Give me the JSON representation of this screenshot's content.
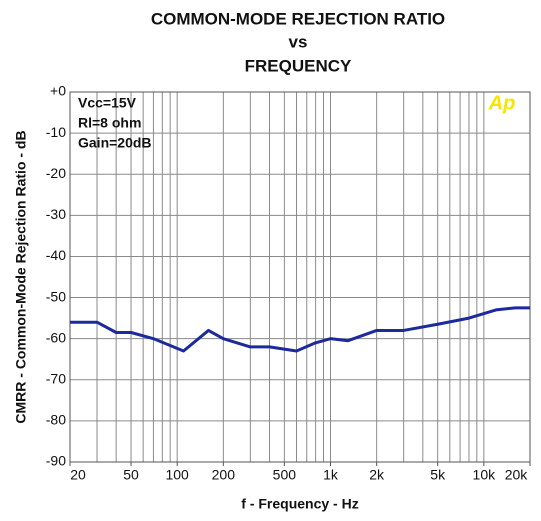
{
  "chart_data": {
    "type": "line",
    "title_lines": [
      "COMMON-MODE REJECTION RATIO",
      "vs",
      "FREQUENCY"
    ],
    "x_label": "f - Frequency - Hz",
    "y_label": "CMRR - Common-Mode Rejection Ratio - dB",
    "annotations": [
      "Vcc=15V",
      "Rl=8 ohm",
      "Gain=20dB"
    ],
    "logo": "Ap",
    "x_scale": "log",
    "xlim": [
      20,
      20000
    ],
    "xticks": [
      20,
      50,
      100,
      200,
      500,
      {
        "value": 1000,
        "label": "1k"
      },
      {
        "value": 2000,
        "label": "2k"
      },
      {
        "value": 5000,
        "label": "5k"
      },
      {
        "value": 10000,
        "label": "10k"
      },
      {
        "value": 20000,
        "label": "20k"
      }
    ],
    "xgrid": [
      20,
      30,
      40,
      50,
      60,
      70,
      80,
      90,
      100,
      200,
      300,
      400,
      500,
      600,
      700,
      800,
      900,
      1000,
      2000,
      3000,
      4000,
      5000,
      6000,
      7000,
      8000,
      9000,
      10000,
      20000
    ],
    "ylim": [
      -90,
      0
    ],
    "yticks": [
      {
        "value": 0,
        "label": "+0"
      },
      -10,
      -20,
      -30,
      -40,
      -50,
      -60,
      -70,
      -80,
      -90
    ],
    "grid": true,
    "series": [
      {
        "name": "CMRR",
        "color": "#1c2a9c",
        "x": [
          20,
          30,
          40,
          50,
          70,
          110,
          160,
          200,
          300,
          400,
          600,
          800,
          1000,
          1300,
          2000,
          3000,
          5000,
          8000,
          12000,
          16000,
          20000
        ],
        "values": [
          -56,
          -56,
          -58.5,
          -58.5,
          -60,
          -63,
          -58,
          -60,
          -62,
          -62,
          -63,
          -61,
          -60,
          -60.5,
          -58,
          -58,
          -56.5,
          -55,
          -53,
          -52.5,
          -52.5
        ]
      }
    ]
  }
}
